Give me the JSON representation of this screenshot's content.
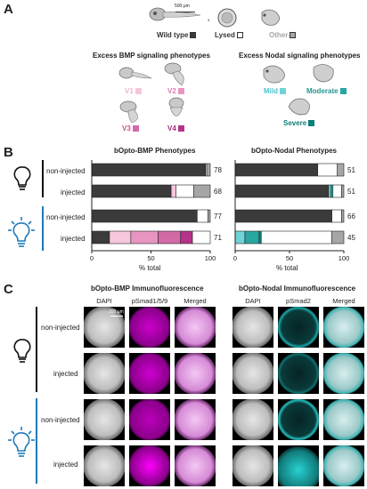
{
  "panels": [
    "A",
    "B",
    "C"
  ],
  "colors": {
    "wild_type": "#3b3b3b",
    "other": "#a6a6a6",
    "v1": "#f7c7de",
    "v2": "#e895c2",
    "v3": "#d36aa8",
    "v4": "#b5338a",
    "mild": "#6fd3d8",
    "moderate": "#2aa6a1",
    "severe": "#0b7f7a",
    "bulb_accent": "#1f7ab8",
    "pink_text": "#e79ac7",
    "cyan_text": "#3bbdc4"
  },
  "panelA": {
    "scale_label": "500 μm",
    "wild_type_label": "Wild type",
    "lysed_label": "Lysed",
    "other_label": "Other",
    "bmp_header": "Excess BMP signaling phenotypes",
    "nodal_header": "Excess Nodal signaling phenotypes",
    "bmp_classes": [
      "V1",
      "V2",
      "V3",
      "V4"
    ],
    "nodal_classes": [
      "Mild",
      "Moderate",
      "Severe"
    ]
  },
  "panelB": {
    "bmp_title": "bOpto-BMP Phenotypes",
    "nodal_title": "bOpto-Nodal Phenotypes",
    "row_labels": [
      "non-injected",
      "injected",
      "non-injected",
      "injected"
    ],
    "xlabel": "% total",
    "bmp_ticks": [
      "0",
      "50",
      "100"
    ],
    "nodal_ticks": [
      "0",
      "50",
      "100"
    ]
  },
  "chart_data": [
    {
      "type": "bar",
      "title": "bOpto-BMP Phenotypes",
      "xlabel": "% total",
      "xlim": [
        0,
        100
      ],
      "categories": [
        "non-injected (dark)",
        "injected (dark)",
        "non-injected (light)",
        "injected (light)"
      ],
      "n": [
        "78",
        "68",
        "77",
        "71"
      ],
      "series": [
        {
          "name": "Wild type",
          "values": [
            96,
            67,
            89,
            15
          ]
        },
        {
          "name": "V1",
          "values": [
            0,
            4,
            0,
            18
          ]
        },
        {
          "name": "V2",
          "values": [
            0,
            0,
            0,
            23
          ]
        },
        {
          "name": "V3",
          "values": [
            0,
            0,
            0,
            19
          ]
        },
        {
          "name": "V4",
          "values": [
            0,
            0,
            0,
            10
          ]
        },
        {
          "name": "Lysed",
          "values": [
            1,
            15,
            9,
            15
          ]
        },
        {
          "name": "Other",
          "values": [
            3,
            14,
            2,
            0
          ]
        }
      ]
    },
    {
      "type": "bar",
      "title": "bOpto-Nodal Phenotypes",
      "xlabel": "% total",
      "xlim": [
        0,
        100
      ],
      "categories": [
        "non-injected (dark)",
        "injected (dark)",
        "non-injected (light)",
        "injected (light)"
      ],
      "n": [
        "51",
        "51",
        "66",
        "45"
      ],
      "series": [
        {
          "name": "Wild type",
          "values": [
            76,
            86,
            89,
            0
          ]
        },
        {
          "name": "Mild",
          "values": [
            0,
            2,
            0,
            9
          ]
        },
        {
          "name": "Moderate",
          "values": [
            0,
            2,
            0,
            13
          ]
        },
        {
          "name": "Severe",
          "values": [
            0,
            0,
            0,
            2
          ]
        },
        {
          "name": "Lysed",
          "values": [
            18,
            8,
            9,
            65
          ]
        },
        {
          "name": "Other",
          "values": [
            6,
            2,
            2,
            11
          ]
        }
      ]
    }
  ],
  "panelC": {
    "bmp_title": "bOpto-BMP Immunofluorescence",
    "nodal_title": "bOpto-Nodal Immunofluorescence",
    "bmp_cols": [
      "DAPI",
      "pSmad1/5/9",
      "Merged"
    ],
    "nodal_cols": [
      "DAPI",
      "pSmad2",
      "Merged"
    ],
    "row_labels": [
      "non-injected",
      "injected",
      "non-injected",
      "injected"
    ],
    "scale_label": "200 μm"
  }
}
